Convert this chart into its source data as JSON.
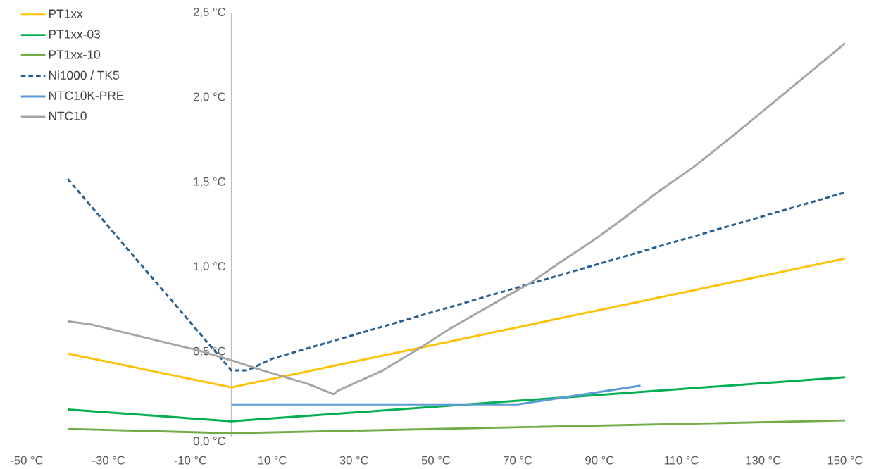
{
  "chart_data": {
    "type": "line",
    "legend": "top left",
    "xlim": [
      -50,
      150
    ],
    "ylim": [
      0,
      2.5
    ],
    "xticks": [
      {
        "value": -50,
        "label": "-50 °C"
      },
      {
        "value": -30,
        "label": "-30 °C"
      },
      {
        "value": -10,
        "label": "-10 °C"
      },
      {
        "value": 10,
        "label": "10 °C"
      },
      {
        "value": 30,
        "label": "30 °C"
      },
      {
        "value": 50,
        "label": "50 °C"
      },
      {
        "value": 70,
        "label": "70 °C"
      },
      {
        "value": 90,
        "label": "90 °C"
      },
      {
        "value": 110,
        "label": "110 °C"
      },
      {
        "value": 130,
        "label": "130 °C"
      },
      {
        "value": 150,
        "label": "150 °C"
      }
    ],
    "yticks": [
      {
        "value": 0,
        "label": "0,0 °C"
      },
      {
        "value": 0.5,
        "label": "0,5 °C"
      },
      {
        "value": 1,
        "label": "1,0 °C"
      },
      {
        "value": 1.5,
        "label": "1,5 °C"
      },
      {
        "value": 2,
        "label": "2,0 °C"
      },
      {
        "value": 2.5,
        "label": "2,5 °C"
      }
    ],
    "series": [
      {
        "name": "PT1xx",
        "color": "#ffc000",
        "x": [
          -40,
          0,
          150
        ],
        "values": [
          0.49,
          0.29,
          1.05
        ]
      },
      {
        "name": "PT1xx-03",
        "color": "#00b050",
        "x": [
          -40,
          0,
          150
        ],
        "values": [
          0.16,
          0.09,
          0.35
        ]
      },
      {
        "name": "PT1xx-10",
        "color": "#70ad47",
        "x": [
          -40,
          0,
          150
        ],
        "values": [
          0.045,
          0.02,
          0.095
        ]
      },
      {
        "name": "Ni1000 / TK5",
        "color": "#255e91",
        "line_style": "dashed",
        "x": [
          -40,
          0,
          4,
          10,
          150
        ],
        "values": [
          1.52,
          0.39,
          0.39,
          0.46,
          1.44
        ]
      },
      {
        "name": "NTC10K-PRE",
        "color": "#5b9bd5",
        "x": [
          0,
          70,
          100
        ],
        "values": [
          0.19,
          0.19,
          0.3
        ]
      },
      {
        "name": "NTC10",
        "color": "#a5a5a5",
        "x": [
          -40,
          -34,
          -25.5,
          -17,
          -8.3,
          0,
          7.7,
          18.8,
          25,
          26,
          37,
          46.6,
          53,
          67.4,
          72.7,
          80.5,
          88,
          95.5,
          103,
          107,
          113,
          123.4,
          141,
          150
        ],
        "values": [
          0.68,
          0.66,
          0.61,
          0.56,
          0.51,
          0.45,
          0.39,
          0.31,
          0.25,
          0.27,
          0.39,
          0.53,
          0.63,
          0.83,
          0.9,
          1.03,
          1.15,
          1.28,
          1.42,
          1.49,
          1.59,
          1.79,
          2.14,
          2.32
        ]
      }
    ]
  }
}
